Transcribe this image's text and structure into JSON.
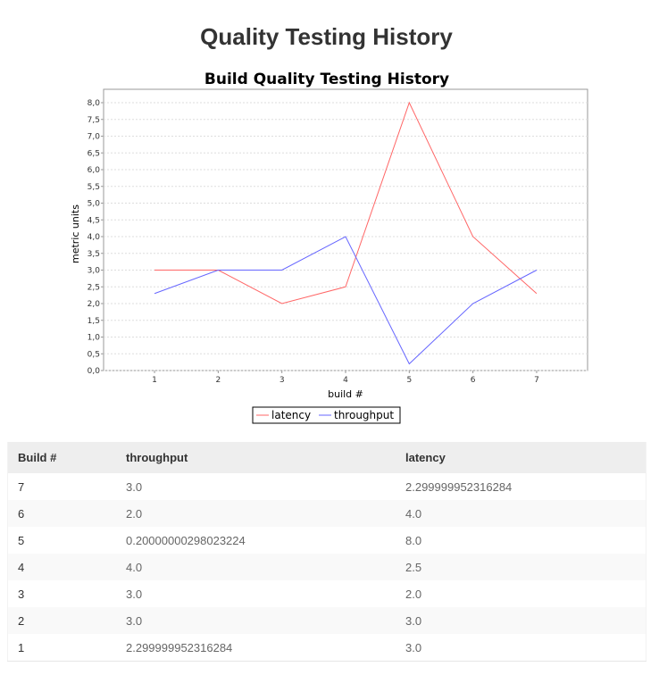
{
  "page": {
    "title": "Quality Testing History"
  },
  "chart_data": {
    "type": "line",
    "title": "Build Quality Testing History",
    "xlabel": "build #",
    "ylabel": "metric units",
    "x": [
      1,
      2,
      3,
      4,
      5,
      6,
      7
    ],
    "x_tick_labels": [
      "1",
      "2",
      "3",
      "4",
      "5",
      "6",
      "7"
    ],
    "ylim": [
      0,
      8.4
    ],
    "y_tick_labels": [
      "0,0",
      "0,5",
      "1,0",
      "1,5",
      "2,0",
      "2,5",
      "3,0",
      "3,5",
      "4,0",
      "4,5",
      "5,0",
      "5,5",
      "6,0",
      "6,5",
      "7,0",
      "7,5",
      "8,0"
    ],
    "grid": true,
    "legend_position": "bottom",
    "series": [
      {
        "name": "latency",
        "color": "#ff6666",
        "values": [
          3.0,
          3.0,
          2.0,
          2.5,
          8.0,
          4.0,
          2.3
        ]
      },
      {
        "name": "throughput",
        "color": "#6666ff",
        "values": [
          2.3,
          3.0,
          3.0,
          4.0,
          0.2,
          2.0,
          3.0
        ]
      }
    ]
  },
  "table": {
    "headers": [
      "Build #",
      "throughput",
      "latency"
    ],
    "rows": [
      [
        "7",
        "3.0",
        "2.299999952316284"
      ],
      [
        "6",
        "2.0",
        "4.0"
      ],
      [
        "5",
        "0.20000000298023224",
        "8.0"
      ],
      [
        "4",
        "4.0",
        "2.5"
      ],
      [
        "3",
        "3.0",
        "2.0"
      ],
      [
        "2",
        "3.0",
        "3.0"
      ],
      [
        "1",
        "2.299999952316284",
        "3.0"
      ]
    ]
  }
}
